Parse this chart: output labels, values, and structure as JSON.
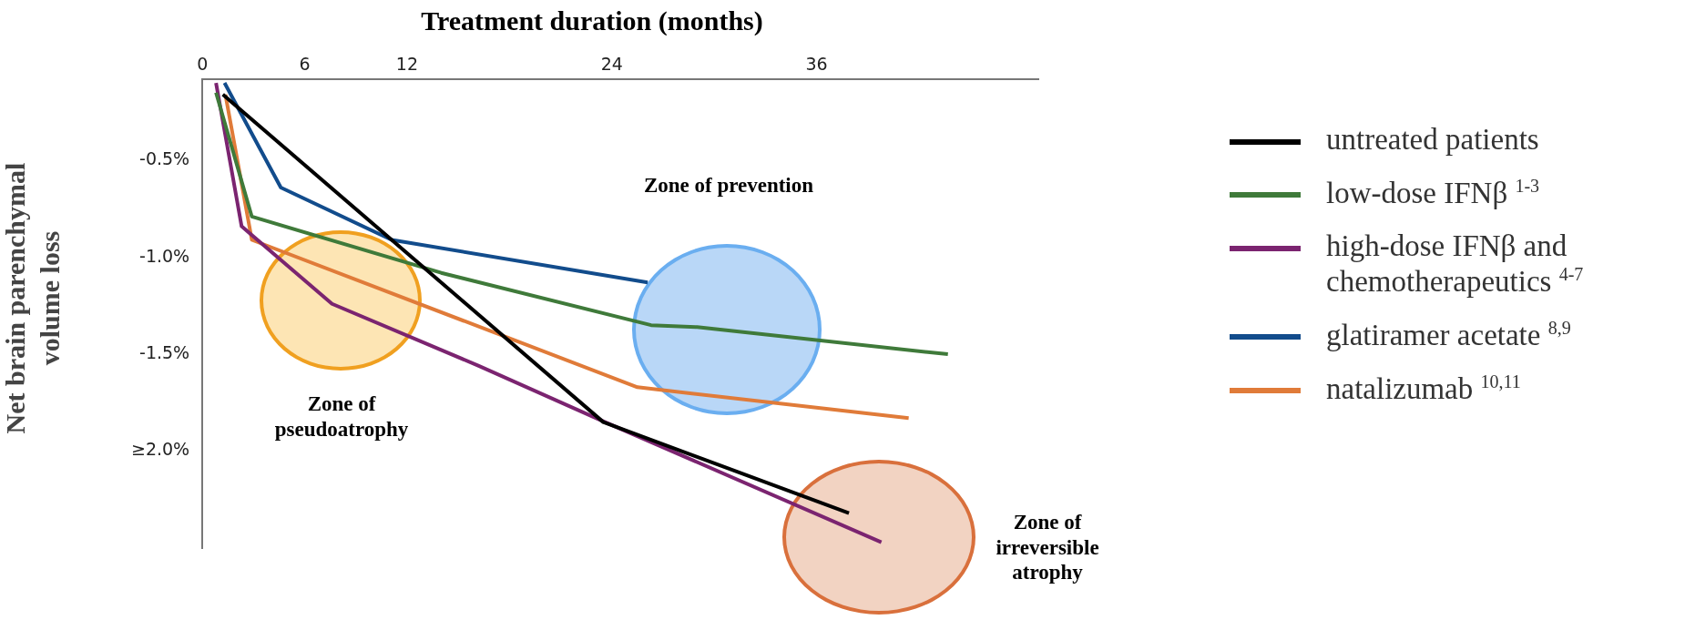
{
  "chart_data": {
    "type": "line",
    "xlabel": "Treatment duration (months)",
    "ylabel": "Net brain parenchymal volume loss",
    "xlim": [
      0,
      49
    ],
    "xticks": [
      0,
      6,
      12,
      24,
      36
    ],
    "ylim": [
      -2.5,
      -0.08
    ],
    "yticks": [
      {
        "value": -0.5,
        "label": "-0.5%"
      },
      {
        "value": -1.0,
        "label": "-1.0%"
      },
      {
        "value": -1.5,
        "label": "-1.5%"
      },
      {
        "value": -2.0,
        "label": "≥2.0%"
      }
    ],
    "grid": false,
    "legend": "right",
    "marker": "none",
    "line_style": "solid",
    "series": [
      {
        "name": "untreated patients",
        "color": "#000000",
        "x": [
          1.2,
          23.5,
          37.9
        ],
        "values": [
          -0.16,
          -1.85,
          -2.32
        ]
      },
      {
        "name": "low-dose IFNβ $^{1-3}$",
        "color": "#3f7a3a",
        "x": [
          0.8,
          2.9,
          14,
          26.3,
          29,
          43.7
        ],
        "values": [
          -0.15,
          -0.79,
          -1.08,
          -1.35,
          -1.36,
          -1.5
        ]
      },
      {
        "name": "high-dose IFNβ and chemotherapeutics $^{4-7}$",
        "color": "#7b2470",
        "x": [
          0.8,
          2.3,
          7.6,
          16.2,
          23.6,
          39.8
        ],
        "values": [
          -0.1,
          -0.84,
          -1.24,
          -1.56,
          -1.85,
          -2.47
        ]
      },
      {
        "name": "glatiramer acetate $^{8,9}$",
        "color": "#124c8c",
        "x": [
          1.3,
          4.6,
          11.1,
          26.1
        ],
        "values": [
          -0.1,
          -0.64,
          -0.91,
          -1.13
        ]
      },
      {
        "name": "natalizumab $^{10,11}$",
        "color": "#e07b39",
        "x": [
          1.35,
          2.9,
          25.5,
          41.4
        ],
        "values": [
          -0.16,
          -0.91,
          -1.67,
          -1.83
        ]
      }
    ],
    "annotations": [
      "Zone of pseudoatrophy",
      "Zone of prevention",
      "Zone of irreversible atrophy"
    ]
  }
}
